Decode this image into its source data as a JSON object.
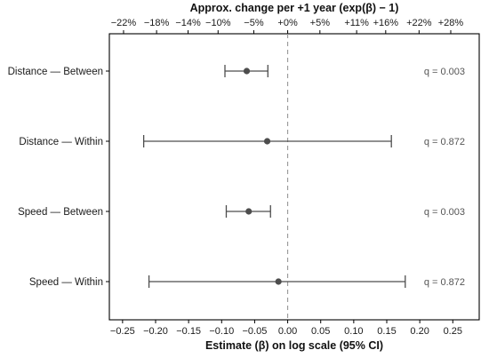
{
  "chart_data": {
    "type": "forest",
    "title": "",
    "xlabel": "Estimate (β) on log scale (95% CI)",
    "x2label": "Approx. change per +1 year (exp(β) − 1)",
    "xlim": [
      -0.27,
      0.29
    ],
    "xticks": [
      -0.25,
      -0.2,
      -0.15,
      -0.1,
      -0.05,
      0.0,
      0.05,
      0.1,
      0.15,
      0.2,
      0.25
    ],
    "xtick_labels": [
      "−0.25",
      "−0.20",
      "−0.15",
      "−0.10",
      "−0.05",
      "0.00",
      "0.05",
      "0.10",
      "0.15",
      "0.20",
      "0.25"
    ],
    "x2ticks": [
      -0.2485,
      -0.1985,
      -0.1508,
      -0.1054,
      -0.0513,
      0.0,
      0.0488,
      0.1044,
      0.1484,
      0.1989,
      0.2469
    ],
    "x2tick_labels": [
      "−22%",
      "−18%",
      "−14%",
      "−10%",
      "−5%",
      "+0%",
      "+5%",
      "+11%",
      "+16%",
      "+22%",
      "+28%"
    ],
    "reference_line": 0,
    "grid": false,
    "rows": [
      {
        "label": "Distance — Between",
        "estimate": -0.062,
        "ci_low": -0.095,
        "ci_high": -0.03,
        "q_label": "q = 0.003"
      },
      {
        "label": "Distance — Within",
        "estimate": -0.031,
        "ci_low": -0.218,
        "ci_high": 0.157,
        "q_label": "q = 0.872"
      },
      {
        "label": "Speed — Between",
        "estimate": -0.059,
        "ci_low": -0.093,
        "ci_high": -0.026,
        "q_label": "q = 0.003"
      },
      {
        "label": "Speed — Within",
        "estimate": -0.014,
        "ci_low": -0.21,
        "ci_high": 0.178,
        "q_label": "q = 0.872"
      }
    ],
    "colors": {
      "point": "#4d4d4d",
      "ci": "#4d4d4d",
      "reference": "#999999",
      "q_text": "#555555"
    }
  }
}
